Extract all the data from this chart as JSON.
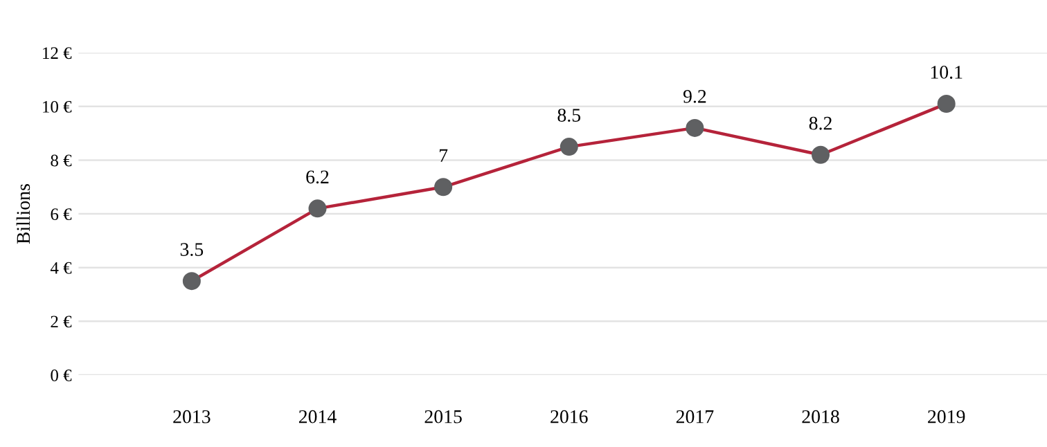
{
  "chart_data": {
    "type": "line",
    "ylabel": "Billions",
    "categories": [
      "2013",
      "2014",
      "2015",
      "2016",
      "2017",
      "2018",
      "2019"
    ],
    "series": [
      {
        "color": "#b5233a",
        "colors": [
          "#5f6062",
          "#5f6062",
          "#5f6062",
          "#5f6062",
          "#5f6062",
          "#5f6062",
          "#5f6062"
        ],
        "values": [
          3.5,
          6.2,
          7,
          8.5,
          9.2,
          8.2,
          10.1
        ]
      }
    ],
    "ylim": [
      0,
      12
    ],
    "yticks": [
      {
        "value": 0,
        "label": "0 €"
      },
      {
        "value": 2,
        "label": "2 €"
      },
      {
        "value": 4,
        "label": "4 €"
      },
      {
        "value": 6,
        "label": "6 €"
      },
      {
        "value": 8,
        "label": "8 €"
      },
      {
        "value": 10,
        "label": "10 €"
      },
      {
        "value": 12,
        "label": "12 €"
      }
    ],
    "grid": "y",
    "marker": "circle",
    "line_style": "solid",
    "data_labels": true
  }
}
